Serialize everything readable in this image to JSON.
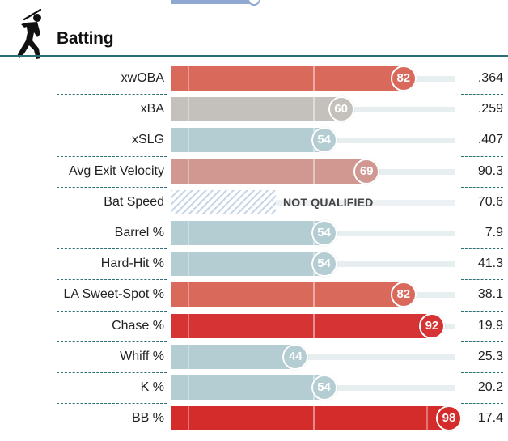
{
  "section": {
    "title": "Batting",
    "icon": "batter-silhouette-icon"
  },
  "colors": {
    "accent": "#2d6d75",
    "top_bar": "#8fa8d2",
    "track": "#e6eef0"
  },
  "chart_data": {
    "type": "bar",
    "orientation": "horizontal",
    "scale": [
      0,
      100
    ],
    "rows": [
      {
        "label": "xwOBA",
        "percentile": 82,
        "value": ".364",
        "color": "#d9695b"
      },
      {
        "label": "xBA",
        "percentile": 60,
        "value": ".259",
        "color": "#c4c0bb"
      },
      {
        "label": "xSLG",
        "percentile": 54,
        "value": ".407",
        "color": "#b3cdd2"
      },
      {
        "label": "Avg Exit Velocity",
        "percentile": 69,
        "value": "90.3",
        "color": "#d09890"
      },
      {
        "label": "Bat Speed",
        "percentile": null,
        "status": "NOT QUALIFIED",
        "value": "70.6",
        "color": "#c9d6e6"
      },
      {
        "label": "Barrel %",
        "percentile": 54,
        "value": "7.9",
        "color": "#b3cdd2"
      },
      {
        "label": "Hard-Hit %",
        "percentile": 54,
        "value": "41.3",
        "color": "#b3cdd2"
      },
      {
        "label": "LA Sweet-Spot %",
        "percentile": 82,
        "value": "38.1",
        "color": "#d9695b"
      },
      {
        "label": "Chase %",
        "percentile": 92,
        "value": "19.9",
        "color": "#d63434"
      },
      {
        "label": "Whiff %",
        "percentile": 44,
        "value": "25.3",
        "color": "#b3cdd2"
      },
      {
        "label": "K %",
        "percentile": 54,
        "value": "20.2",
        "color": "#b3cdd2"
      },
      {
        "label": "BB %",
        "percentile": 98,
        "value": "17.4",
        "color": "#d42b2b"
      }
    ]
  }
}
